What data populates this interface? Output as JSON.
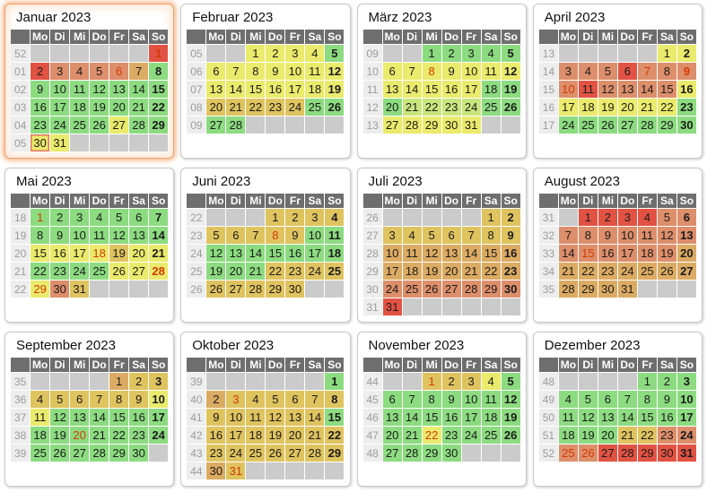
{
  "weekday_headers": [
    "Mo",
    "Di",
    "Mi",
    "Do",
    "Fr",
    "Sa",
    "So"
  ],
  "palette": {
    "g": "#8cdb80",
    "yg": "#c9e57d",
    "y": "#eaea6c",
    "t": "#dfc35f",
    "to": "#dcab63",
    "s": "#dd8e6a",
    "r": "#e25243"
  },
  "holiday_text_color": "#d63a00",
  "months": [
    {
      "title": "Januar 2023",
      "highlight": true,
      "weeks": [
        {
          "n": "52",
          "d": [
            "",
            "",
            "",
            "",
            "",
            "",
            "1|r|h"
          ]
        },
        {
          "n": "01",
          "d": [
            "2|r",
            "3|s",
            "4|s",
            "5|s",
            "6|s|h",
            "7|to",
            "8|g"
          ]
        },
        {
          "n": "02",
          "d": [
            "9|g",
            "10|g",
            "11|g",
            "12|g",
            "13|g",
            "14|g",
            "15|g"
          ]
        },
        {
          "n": "03",
          "d": [
            "16|g",
            "17|g",
            "18|g",
            "19|g",
            "20|g",
            "21|g",
            "22|g"
          ]
        },
        {
          "n": "04",
          "d": [
            "23|g",
            "24|g",
            "25|g",
            "26|g",
            "27|y",
            "28|g",
            "29|g"
          ]
        },
        {
          "n": "05",
          "d": [
            "30|y|t",
            "31|y",
            "",
            "",
            "",
            "",
            ""
          ]
        }
      ]
    },
    {
      "title": "Februar 2023",
      "highlight": false,
      "weeks": [
        {
          "n": "05",
          "d": [
            "",
            "",
            "1|y",
            "2|y",
            "3|y",
            "4|y",
            "5|g"
          ]
        },
        {
          "n": "06",
          "d": [
            "6|y",
            "7|y",
            "8|y",
            "9|y",
            "10|y",
            "11|y",
            "12|y"
          ]
        },
        {
          "n": "07",
          "d": [
            "13|y",
            "14|y",
            "15|y",
            "16|y",
            "17|y",
            "18|y",
            "19|y"
          ]
        },
        {
          "n": "08",
          "d": [
            "20|t",
            "21|t",
            "22|t",
            "23|t",
            "24|t",
            "25|g",
            "26|g"
          ]
        },
        {
          "n": "09",
          "d": [
            "27|g",
            "28|g",
            "",
            "",
            "",
            "",
            ""
          ]
        }
      ]
    },
    {
      "title": "März 2023",
      "highlight": false,
      "weeks": [
        {
          "n": "09",
          "d": [
            "",
            "",
            "1|g",
            "2|g",
            "3|g",
            "4|g",
            "5|g"
          ]
        },
        {
          "n": "10",
          "d": [
            "6|y",
            "7|y",
            "8|y|h",
            "9|y",
            "10|y",
            "11|y",
            "12|y"
          ]
        },
        {
          "n": "11",
          "d": [
            "13|y",
            "14|y",
            "15|y",
            "16|y",
            "17|y",
            "18|g",
            "19|g"
          ]
        },
        {
          "n": "12",
          "d": [
            "20|g",
            "21|yg",
            "22|yg",
            "23|yg",
            "24|yg",
            "25|g",
            "26|g"
          ]
        },
        {
          "n": "13",
          "d": [
            "27|y",
            "28|y",
            "29|y",
            "30|y",
            "31|y",
            "",
            ""
          ]
        }
      ]
    },
    {
      "title": "April 2023",
      "highlight": false,
      "weeks": [
        {
          "n": "13",
          "d": [
            "",
            "",
            "",
            "",
            "",
            "1|y",
            "2|y"
          ]
        },
        {
          "n": "14",
          "d": [
            "3|s",
            "4|s",
            "5|s",
            "6|r",
            "7|s|h",
            "8|s",
            "9|s|h"
          ]
        },
        {
          "n": "15",
          "d": [
            "10|s|h",
            "11|r",
            "12|s",
            "13|s",
            "14|s",
            "15|s",
            "16|y"
          ]
        },
        {
          "n": "16",
          "d": [
            "17|y",
            "18|y",
            "19|y",
            "20|y",
            "21|y",
            "22|y",
            "23|g"
          ]
        },
        {
          "n": "17",
          "d": [
            "24|g",
            "25|g",
            "26|g",
            "27|g",
            "28|g",
            "29|g",
            "30|g"
          ]
        }
      ]
    },
    {
      "title": "Mai 2023",
      "highlight": false,
      "weeks": [
        {
          "n": "18",
          "d": [
            "1|g|h",
            "2|g",
            "3|g",
            "4|g",
            "5|g",
            "6|g",
            "7|g"
          ]
        },
        {
          "n": "19",
          "d": [
            "8|g",
            "9|g",
            "10|g",
            "11|g",
            "12|g",
            "13|g",
            "14|g"
          ]
        },
        {
          "n": "20",
          "d": [
            "15|y",
            "16|y",
            "17|y",
            "18|y|h",
            "19|t",
            "20|y",
            "21|y"
          ]
        },
        {
          "n": "21",
          "d": [
            "22|g",
            "23|g",
            "24|g",
            "25|g",
            "26|y",
            "27|y",
            "28|y|h"
          ]
        },
        {
          "n": "22",
          "d": [
            "29|y|h",
            "30|s",
            "31|t",
            "",
            "",
            "",
            ""
          ]
        }
      ]
    },
    {
      "title": "Juni 2023",
      "highlight": false,
      "weeks": [
        {
          "n": "22",
          "d": [
            "",
            "",
            "",
            "1|t",
            "2|t",
            "3|t",
            "4|t"
          ]
        },
        {
          "n": "23",
          "d": [
            "5|t",
            "6|t",
            "7|t",
            "8|t|h",
            "9|t",
            "10|g",
            "11|g"
          ]
        },
        {
          "n": "24",
          "d": [
            "12|g",
            "13|g",
            "14|g",
            "15|g",
            "16|g",
            "17|g",
            "18|g"
          ]
        },
        {
          "n": "25",
          "d": [
            "19|g",
            "20|g",
            "21|g",
            "22|t",
            "23|t",
            "24|t",
            "25|t"
          ]
        },
        {
          "n": "26",
          "d": [
            "26|t",
            "27|t",
            "28|t",
            "29|t",
            "30|t",
            "",
            ""
          ]
        }
      ]
    },
    {
      "title": "Juli 2023",
      "highlight": false,
      "weeks": [
        {
          "n": "26",
          "d": [
            "",
            "",
            "",
            "",
            "",
            "1|t",
            "2|t"
          ]
        },
        {
          "n": "27",
          "d": [
            "3|t",
            "4|t",
            "5|t",
            "6|t",
            "7|t",
            "8|t",
            "9|t"
          ]
        },
        {
          "n": "28",
          "d": [
            "10|to",
            "11|to",
            "12|to",
            "13|to",
            "14|to",
            "15|to",
            "16|to"
          ]
        },
        {
          "n": "29",
          "d": [
            "17|to",
            "18|to",
            "19|to",
            "20|to",
            "21|to",
            "22|to",
            "23|to"
          ]
        },
        {
          "n": "30",
          "d": [
            "24|s",
            "25|s",
            "26|s",
            "27|s",
            "28|s",
            "29|s",
            "30|s"
          ]
        },
        {
          "n": "31",
          "d": [
            "31|r",
            "",
            "",
            "",
            "",
            "",
            ""
          ]
        }
      ]
    },
    {
      "title": "August 2023",
      "highlight": false,
      "weeks": [
        {
          "n": "31",
          "d": [
            "",
            "1|r",
            "2|r",
            "3|r",
            "4|r",
            "5|s",
            "6|s"
          ]
        },
        {
          "n": "32",
          "d": [
            "7|s",
            "8|s",
            "9|s",
            "10|s",
            "11|s",
            "12|s",
            "13|s"
          ]
        },
        {
          "n": "33",
          "d": [
            "14|s",
            "15|s|h",
            "16|s",
            "17|s",
            "18|s",
            "19|s",
            "20|to"
          ]
        },
        {
          "n": "34",
          "d": [
            "21|to",
            "22|to",
            "23|to",
            "24|to",
            "25|to",
            "26|to",
            "27|to"
          ]
        },
        {
          "n": "35",
          "d": [
            "28|to",
            "29|to",
            "30|to",
            "31|to",
            "",
            "",
            ""
          ]
        }
      ]
    },
    {
      "title": "September 2023",
      "highlight": false,
      "weeks": [
        {
          "n": "35",
          "d": [
            "",
            "",
            "",
            "",
            "1|to",
            "2|t",
            "3|t"
          ]
        },
        {
          "n": "36",
          "d": [
            "4|t",
            "5|t",
            "6|t",
            "7|t",
            "8|t",
            "9|t",
            "10|y"
          ]
        },
        {
          "n": "37",
          "d": [
            "11|y",
            "12|g",
            "13|g",
            "14|g",
            "15|g",
            "16|g",
            "17|g"
          ]
        },
        {
          "n": "38",
          "d": [
            "18|g",
            "19|g",
            "20|g|h",
            "21|g",
            "22|g",
            "23|g",
            "24|g"
          ]
        },
        {
          "n": "39",
          "d": [
            "25|g",
            "26|g",
            "27|g",
            "28|g",
            "29|g",
            "30|g",
            ""
          ]
        }
      ]
    },
    {
      "title": "Oktober 2023",
      "highlight": false,
      "weeks": [
        {
          "n": "39",
          "d": [
            "",
            "",
            "",
            "",
            "",
            "",
            "1|g"
          ]
        },
        {
          "n": "40",
          "d": [
            "2|to",
            "3|t|h",
            "4|t",
            "5|t",
            "6|t",
            "7|t",
            "8|t"
          ]
        },
        {
          "n": "41",
          "d": [
            "9|t",
            "10|t",
            "11|t",
            "12|t",
            "13|t",
            "14|t",
            "15|g"
          ]
        },
        {
          "n": "42",
          "d": [
            "16|t",
            "17|t",
            "18|t",
            "19|t",
            "20|t",
            "21|t",
            "22|t"
          ]
        },
        {
          "n": "43",
          "d": [
            "23|t",
            "24|t",
            "25|t",
            "26|t",
            "27|t",
            "28|t",
            "29|t"
          ]
        },
        {
          "n": "44",
          "d": [
            "30|to",
            "31|t|h",
            "",
            "",
            "",
            "",
            ""
          ]
        }
      ]
    },
    {
      "title": "November 2023",
      "highlight": false,
      "weeks": [
        {
          "n": "44",
          "d": [
            "",
            "",
            "1|t|h",
            "2|t",
            "3|t",
            "4|y",
            "5|g"
          ]
        },
        {
          "n": "45",
          "d": [
            "6|g",
            "7|g",
            "8|g",
            "9|g",
            "10|g",
            "11|g",
            "12|g"
          ]
        },
        {
          "n": "46",
          "d": [
            "13|g",
            "14|g",
            "15|g",
            "16|g",
            "17|g",
            "18|g",
            "19|g"
          ]
        },
        {
          "n": "47",
          "d": [
            "20|g",
            "21|g",
            "22|y|h",
            "23|g",
            "24|g",
            "25|g",
            "26|g"
          ]
        },
        {
          "n": "48",
          "d": [
            "27|g",
            "28|g",
            "29|g",
            "30|g",
            "",
            "",
            ""
          ]
        }
      ]
    },
    {
      "title": "Dezember 2023",
      "highlight": false,
      "weeks": [
        {
          "n": "48",
          "d": [
            "",
            "",
            "",
            "",
            "1|g",
            "2|g",
            "3|g"
          ]
        },
        {
          "n": "49",
          "d": [
            "4|g",
            "5|g",
            "6|g",
            "7|g",
            "8|g",
            "9|g",
            "10|g"
          ]
        },
        {
          "n": "50",
          "d": [
            "11|g",
            "12|g",
            "13|g",
            "14|g",
            "15|g",
            "16|g",
            "17|g"
          ]
        },
        {
          "n": "51",
          "d": [
            "18|g",
            "19|g",
            "20|g",
            "21|t",
            "22|t",
            "23|s",
            "24|s"
          ]
        },
        {
          "n": "52",
          "d": [
            "25|s|h",
            "26|s|h",
            "27|r",
            "28|r",
            "29|r",
            "30|r",
            "31|r"
          ]
        }
      ]
    }
  ]
}
